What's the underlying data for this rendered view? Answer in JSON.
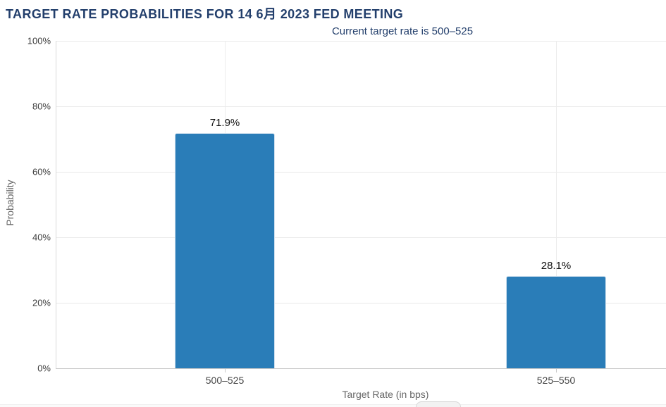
{
  "header": {
    "title": "TARGET RATE PROBABILITIES FOR 14 6月 2023 FED MEETING",
    "subtitle": "Current target rate is 500–525"
  },
  "chart_data": {
    "type": "bar",
    "title": "TARGET RATE PROBABILITIES FOR 14 6月 2023 FED MEETING",
    "subtitle": "Current target rate is 500–525",
    "categories": [
      "500–525",
      "525–550"
    ],
    "values": [
      71.9,
      28.1
    ],
    "value_labels": [
      "71.9%",
      "28.1%"
    ],
    "xlabel": "Target Rate (in bps)",
    "ylabel": "Probability",
    "ylim": [
      0,
      100
    ],
    "yticks": [
      0,
      20,
      40,
      60,
      80,
      100
    ],
    "ytick_labels": [
      "0%",
      "20%",
      "40%",
      "60%",
      "80%",
      "100%"
    ],
    "grid": true,
    "legend_position": "none",
    "colors": {
      "bar_fill": "#2a7db8",
      "title_text": "#233f6c",
      "gridline": "#e9e9e9",
      "axis_line": "#c9c9c9",
      "tick_text": "#3c3c3c",
      "axis_title_text": "#666666",
      "value_label_text": "#111111"
    }
  }
}
